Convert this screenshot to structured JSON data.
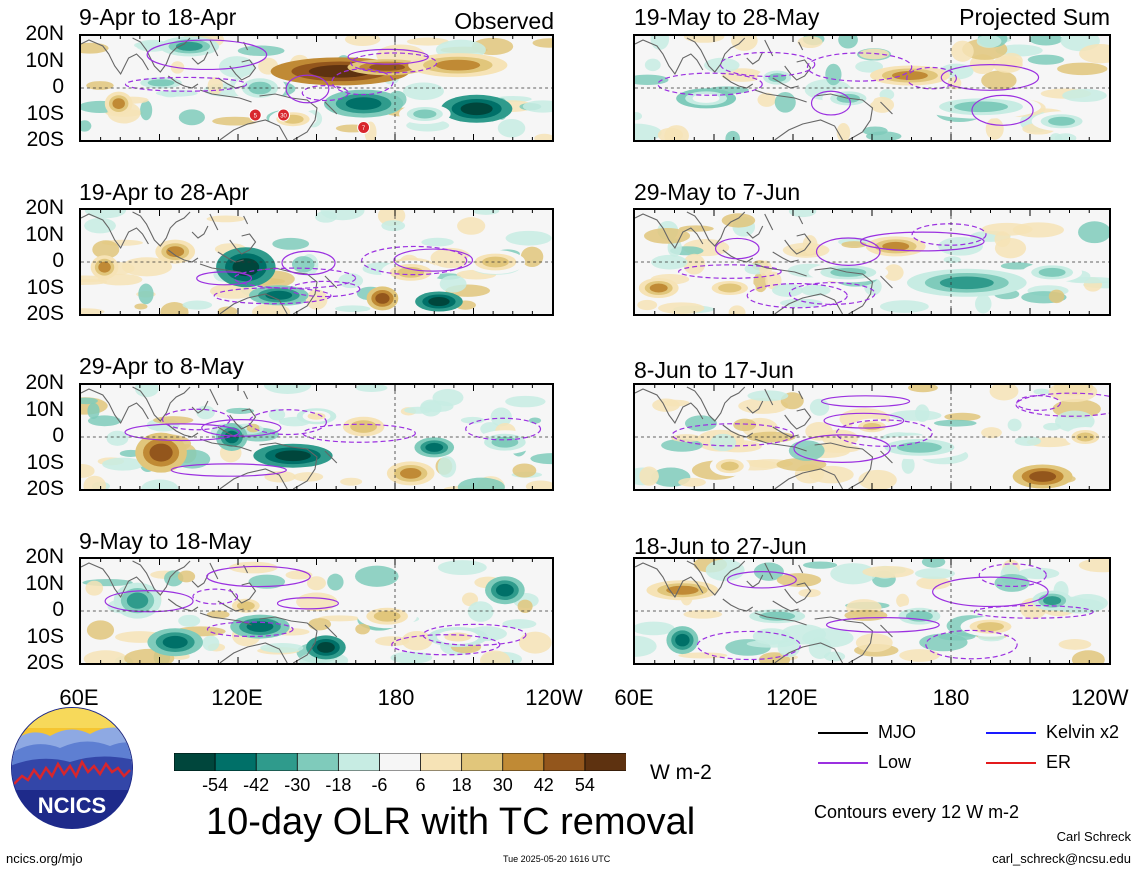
{
  "panels": [
    {
      "title": "9-Apr to 18-Apr",
      "tag": "Observed"
    },
    {
      "title": "19-Apr to 28-Apr",
      "tag": ""
    },
    {
      "title": "29-Apr to 8-May",
      "tag": ""
    },
    {
      "title": "9-May to 18-May",
      "tag": ""
    },
    {
      "title": "19-May to 28-May",
      "tag": "Projected Sum"
    },
    {
      "title": "29-May to 7-Jun",
      "tag": ""
    },
    {
      "title": "8-Jun to 17-Jun",
      "tag": ""
    },
    {
      "title": "18-Jun to 27-Jun",
      "tag": ""
    }
  ],
  "lat_labels": [
    "20N",
    "10N",
    "0",
    "10S",
    "20S"
  ],
  "lon_labels": [
    "60E",
    "120E",
    "180",
    "120W"
  ],
  "tc_markers": [
    "5",
    "30",
    "7"
  ],
  "colorbar": {
    "colors": [
      "#00463c",
      "#007068",
      "#2f9b8c",
      "#7fcbbb",
      "#c7ece3",
      "#f6f6f6",
      "#f6e3b6",
      "#e1c67b",
      "#c08a35",
      "#93561c",
      "#5e3210"
    ],
    "ticks": [
      "-54",
      "-42",
      "-30",
      "-18",
      "-6",
      "6",
      "18",
      "30",
      "42",
      "54"
    ],
    "unit": "W m-2"
  },
  "legend": {
    "items": [
      {
        "label": "MJO",
        "color": "#000000"
      },
      {
        "label": "Kelvin x2",
        "color": "#1a1aff"
      },
      {
        "label": "Low",
        "color": "#9b30e0"
      },
      {
        "label": "ER",
        "color": "#e31a1c"
      }
    ],
    "contours_note": "Contours every 12 W m-2"
  },
  "main_title": "10-day OLR with TC removal",
  "logo_text": "NCICS",
  "footer": {
    "url": "ncics.org/mjo",
    "timestamp": "Tue 2025-05-20 1616 UTC",
    "author": "Carl Schreck",
    "email": "carl_schreck@ncsu.edu"
  }
}
